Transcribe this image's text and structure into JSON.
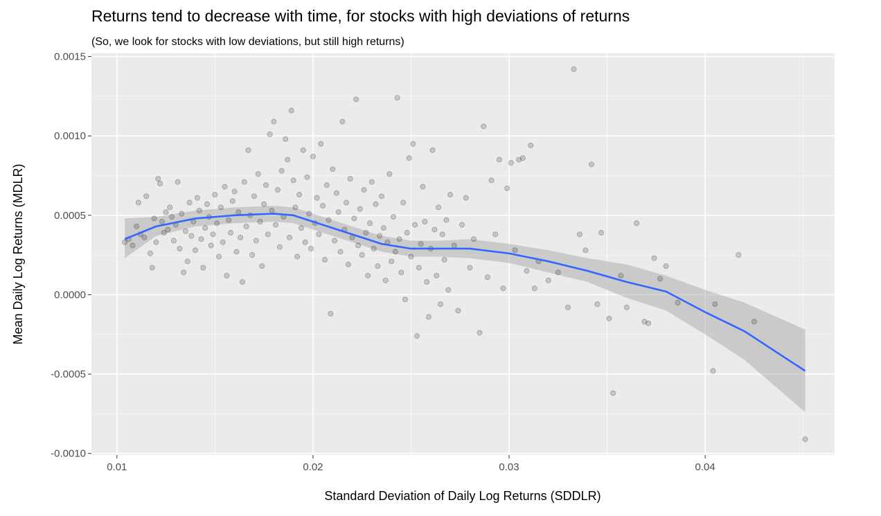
{
  "chart_data": {
    "type": "scatter",
    "title": "Returns tend to decrease with time, for stocks with high deviations of returns",
    "subtitle": "(So, we look for stocks with low deviations, but still high returns)",
    "xlabel": "Standard Deviation of Daily Log Returns (SDDLR)",
    "ylabel": "Mean Daily Log Returns (MDLR)",
    "xlim": [
      0.0087,
      0.0466
    ],
    "ylim": [
      -0.00101,
      0.00152
    ],
    "x_ticks": [
      0.01,
      0.02,
      0.03,
      0.04
    ],
    "x_tick_labels": [
      "0.01",
      "0.02",
      "0.03",
      "0.04"
    ],
    "y_ticks": [
      -0.001,
      -0.0005,
      0.0,
      0.0005,
      0.001,
      0.0015
    ],
    "y_tick_labels": [
      "-0.0010",
      "-0.0005",
      "0.0000",
      "0.0005",
      "0.0010",
      "0.0015"
    ],
    "grid": true,
    "colors": {
      "panel": "#ebebeb",
      "grid_major": "#ffffff",
      "points": "#000000",
      "smooth_line": "#3366ff",
      "ribbon": "#999999"
    },
    "points": [
      [
        0.0104,
        0.00033
      ],
      [
        0.0106,
        0.00035
      ],
      [
        0.0108,
        0.00031
      ],
      [
        0.011,
        0.00043
      ],
      [
        0.0111,
        0.00058
      ],
      [
        0.0112,
        0.00038
      ],
      [
        0.0114,
        0.00036
      ],
      [
        0.0115,
        0.00062
      ],
      [
        0.0117,
        0.00026
      ],
      [
        0.0118,
        0.00017
      ],
      [
        0.0119,
        0.00048
      ],
      [
        0.012,
        0.00033
      ],
      [
        0.0121,
        0.00073
      ],
      [
        0.0122,
        0.0007
      ],
      [
        0.0123,
        0.00046
      ],
      [
        0.0124,
        0.00039
      ],
      [
        0.0125,
        0.00052
      ],
      [
        0.0126,
        0.00041
      ],
      [
        0.0127,
        0.00055
      ],
      [
        0.0128,
        0.00049
      ],
      [
        0.0129,
        0.00034
      ],
      [
        0.013,
        0.00044
      ],
      [
        0.0131,
        0.00071
      ],
      [
        0.0132,
        0.00029
      ],
      [
        0.0133,
        0.00051
      ],
      [
        0.0134,
        0.00014
      ],
      [
        0.0135,
        0.0004
      ],
      [
        0.0136,
        0.00021
      ],
      [
        0.0137,
        0.00058
      ],
      [
        0.0138,
        0.00037
      ],
      [
        0.0139,
        0.00046
      ],
      [
        0.014,
        0.00028
      ],
      [
        0.0141,
        0.00061
      ],
      [
        0.0142,
        0.00053
      ],
      [
        0.0143,
        0.00035
      ],
      [
        0.0144,
        0.00017
      ],
      [
        0.0145,
        0.00042
      ],
      [
        0.0146,
        0.00057
      ],
      [
        0.0147,
        0.00049
      ],
      [
        0.0148,
        0.00031
      ],
      [
        0.0149,
        0.00038
      ],
      [
        0.015,
        0.00063
      ],
      [
        0.0151,
        0.00045
      ],
      [
        0.0152,
        0.00024
      ],
      [
        0.0153,
        0.00055
      ],
      [
        0.0154,
        0.00033
      ],
      [
        0.0155,
        0.00068
      ],
      [
        0.0156,
        0.00012
      ],
      [
        0.0157,
        0.00047
      ],
      [
        0.0158,
        0.00039
      ],
      [
        0.0159,
        0.00059
      ],
      [
        0.016,
        0.00065
      ],
      [
        0.0161,
        0.00027
      ],
      [
        0.0162,
        0.00052
      ],
      [
        0.0163,
        0.00036
      ],
      [
        0.0164,
        8e-05
      ],
      [
        0.0165,
        0.00071
      ],
      [
        0.0166,
        0.00043
      ],
      [
        0.0167,
        0.00091
      ],
      [
        0.0168,
        0.0005
      ],
      [
        0.0169,
        0.00025
      ],
      [
        0.017,
        0.00062
      ],
      [
        0.0171,
        0.00034
      ],
      [
        0.0172,
        0.00076
      ],
      [
        0.0173,
        0.00046
      ],
      [
        0.0174,
        0.00018
      ],
      [
        0.0175,
        0.00057
      ],
      [
        0.0176,
        0.00069
      ],
      [
        0.0177,
        0.00038
      ],
      [
        0.0178,
        0.00101
      ],
      [
        0.0179,
        0.00053
      ],
      [
        0.018,
        0.00109
      ],
      [
        0.0181,
        0.00044
      ],
      [
        0.0182,
        0.00066
      ],
      [
        0.0183,
        0.0003
      ],
      [
        0.0184,
        0.00078
      ],
      [
        0.0185,
        0.00049
      ],
      [
        0.0186,
        0.00098
      ],
      [
        0.0187,
        0.00085
      ],
      [
        0.0188,
        0.00036
      ],
      [
        0.0189,
        0.00116
      ],
      [
        0.019,
        0.00072
      ],
      [
        0.0191,
        0.00055
      ],
      [
        0.0192,
        0.00024
      ],
      [
        0.0193,
        0.00063
      ],
      [
        0.0194,
        0.00042
      ],
      [
        0.0195,
        0.00091
      ],
      [
        0.0196,
        0.00033
      ],
      [
        0.0197,
        0.00074
      ],
      [
        0.0198,
        0.00051
      ],
      [
        0.0199,
        0.00029
      ],
      [
        0.02,
        0.00087
      ],
      [
        0.0201,
        0.00045
      ],
      [
        0.0202,
        0.00061
      ],
      [
        0.0203,
        0.00038
      ],
      [
        0.0204,
        0.00095
      ],
      [
        0.0205,
        0.00056
      ],
      [
        0.0206,
        0.00022
      ],
      [
        0.0207,
        0.00069
      ],
      [
        0.0208,
        0.00047
      ],
      [
        0.0209,
        -0.00012
      ],
      [
        0.021,
        0.00079
      ],
      [
        0.0211,
        0.00034
      ],
      [
        0.0212,
        0.00064
      ],
      [
        0.0213,
        0.00052
      ],
      [
        0.0214,
        0.00027
      ],
      [
        0.0215,
        0.00109
      ],
      [
        0.0216,
        0.00041
      ],
      [
        0.0217,
        0.00058
      ],
      [
        0.0218,
        0.00019
      ],
      [
        0.0219,
        0.00073
      ],
      [
        0.022,
        0.00036
      ],
      [
        0.0221,
        0.00048
      ],
      [
        0.0222,
        0.00123
      ],
      [
        0.0223,
        0.00031
      ],
      [
        0.0224,
        0.00054
      ],
      [
        0.0225,
        0.00025
      ],
      [
        0.0226,
        0.00066
      ],
      [
        0.0227,
        0.00039
      ],
      [
        0.0228,
        0.00012
      ],
      [
        0.0229,
        0.00045
      ],
      [
        0.023,
        0.00071
      ],
      [
        0.0231,
        0.00029
      ],
      [
        0.0232,
        0.00057
      ],
      [
        0.0233,
        0.00018
      ],
      [
        0.0234,
        0.00037
      ],
      [
        0.0235,
        0.00062
      ],
      [
        0.0236,
        0.00042
      ],
      [
        0.0237,
        9e-05
      ],
      [
        0.0238,
        0.00033
      ],
      [
        0.0239,
        0.00076
      ],
      [
        0.024,
        0.00021
      ],
      [
        0.0241,
        0.00049
      ],
      [
        0.0242,
        0.00027
      ],
      [
        0.0243,
        0.00124
      ],
      [
        0.0244,
        0.00035
      ],
      [
        0.0245,
        0.00014
      ],
      [
        0.0246,
        0.00058
      ],
      [
        0.0247,
        -3e-05
      ],
      [
        0.0248,
        0.00039
      ],
      [
        0.0249,
        0.00086
      ],
      [
        0.025,
        0.00024
      ],
      [
        0.0251,
        0.00095
      ],
      [
        0.0252,
        0.00044
      ],
      [
        0.0253,
        -0.00026
      ],
      [
        0.0254,
        0.00017
      ],
      [
        0.0255,
        0.00032
      ],
      [
        0.0256,
        0.00068
      ],
      [
        0.0257,
        0.00046
      ],
      [
        0.0258,
        8e-05
      ],
      [
        0.0259,
        -0.00014
      ],
      [
        0.026,
        0.00029
      ],
      [
        0.0261,
        0.00091
      ],
      [
        0.0262,
        0.00041
      ],
      [
        0.0263,
        0.00012
      ],
      [
        0.0264,
        0.00055
      ],
      [
        0.0265,
        -6e-05
      ],
      [
        0.0266,
        0.00038
      ],
      [
        0.0267,
        0.00022
      ],
      [
        0.0268,
        0.00047
      ],
      [
        0.0269,
        3e-05
      ],
      [
        0.027,
        0.00063
      ],
      [
        0.0272,
        0.00031
      ],
      [
        0.0274,
        -0.0001
      ],
      [
        0.0276,
        0.00044
      ],
      [
        0.0278,
        0.00061
      ],
      [
        0.028,
        0.00017
      ],
      [
        0.0282,
        0.00035
      ],
      [
        0.0285,
        -0.00024
      ],
      [
        0.0287,
        0.00106
      ],
      [
        0.0289,
        0.00011
      ],
      [
        0.0291,
        0.00072
      ],
      [
        0.0293,
        0.00038
      ],
      [
        0.0295,
        0.00085
      ],
      [
        0.0297,
        4e-05
      ],
      [
        0.0299,
        0.00067
      ],
      [
        0.0301,
        0.00083
      ],
      [
        0.0303,
        0.00028
      ],
      [
        0.0305,
        0.00085
      ],
      [
        0.0307,
        0.00086
      ],
      [
        0.0309,
        0.00015
      ],
      [
        0.0311,
        0.00094
      ],
      [
        0.0313,
        4e-05
      ],
      [
        0.0315,
        0.00021
      ],
      [
        0.032,
        9e-05
      ],
      [
        0.0325,
        0.00014
      ],
      [
        0.033,
        -8e-05
      ],
      [
        0.0333,
        0.00142
      ],
      [
        0.0336,
        0.00038
      ],
      [
        0.0339,
        0.00028
      ],
      [
        0.0342,
        0.00082
      ],
      [
        0.0345,
        -6e-05
      ],
      [
        0.0347,
        0.00039
      ],
      [
        0.0351,
        -0.00015
      ],
      [
        0.0353,
        -0.00062
      ],
      [
        0.0357,
        0.00012
      ],
      [
        0.036,
        -8e-05
      ],
      [
        0.0365,
        0.00045
      ],
      [
        0.0369,
        -0.00017
      ],
      [
        0.0371,
        -0.00018
      ],
      [
        0.0374,
        0.00023
      ],
      [
        0.0377,
        0.0001
      ],
      [
        0.038,
        0.00018
      ],
      [
        0.0386,
        -5e-05
      ],
      [
        0.0404,
        -0.00048
      ],
      [
        0.0405,
        -6e-05
      ],
      [
        0.0417,
        0.00025
      ],
      [
        0.0425,
        -0.00017
      ],
      [
        0.0451,
        -0.00091
      ]
    ],
    "smooth_line": [
      [
        0.0104,
        0.00035
      ],
      [
        0.012,
        0.00043
      ],
      [
        0.014,
        0.00048
      ],
      [
        0.016,
        0.0005
      ],
      [
        0.018,
        0.00051
      ],
      [
        0.019,
        0.0005
      ],
      [
        0.0205,
        0.00044
      ],
      [
        0.022,
        0.00038
      ],
      [
        0.0235,
        0.00032
      ],
      [
        0.025,
        0.00029
      ],
      [
        0.0265,
        0.00029
      ],
      [
        0.028,
        0.00029
      ],
      [
        0.03,
        0.00026
      ],
      [
        0.032,
        0.00021
      ],
      [
        0.034,
        0.00015
      ],
      [
        0.036,
        8e-05
      ],
      [
        0.038,
        2e-05
      ],
      [
        0.04,
        -0.00011
      ],
      [
        0.042,
        -0.00023
      ],
      [
        0.0451,
        -0.00048
      ]
    ],
    "ribbon_upper": [
      [
        0.0104,
        0.00048
      ],
      [
        0.012,
        0.00049
      ],
      [
        0.014,
        0.00053
      ],
      [
        0.016,
        0.00055
      ],
      [
        0.018,
        0.00056
      ],
      [
        0.019,
        0.00055
      ],
      [
        0.0205,
        0.00049
      ],
      [
        0.022,
        0.00043
      ],
      [
        0.0235,
        0.00037
      ],
      [
        0.025,
        0.00034
      ],
      [
        0.0265,
        0.00034
      ],
      [
        0.028,
        0.00035
      ],
      [
        0.03,
        0.00032
      ],
      [
        0.032,
        0.00028
      ],
      [
        0.034,
        0.00023
      ],
      [
        0.036,
        0.00019
      ],
      [
        0.038,
        0.00012
      ],
      [
        0.04,
        3e-05
      ],
      [
        0.042,
        -5e-05
      ],
      [
        0.0451,
        -0.00022
      ]
    ],
    "ribbon_lower": [
      [
        0.0104,
        0.00023
      ],
      [
        0.012,
        0.00037
      ],
      [
        0.014,
        0.00043
      ],
      [
        0.016,
        0.00045
      ],
      [
        0.018,
        0.00046
      ],
      [
        0.019,
        0.00045
      ],
      [
        0.0205,
        0.00039
      ],
      [
        0.022,
        0.00033
      ],
      [
        0.0235,
        0.00027
      ],
      [
        0.025,
        0.00024
      ],
      [
        0.0265,
        0.00024
      ],
      [
        0.028,
        0.00023
      ],
      [
        0.03,
        0.0002
      ],
      [
        0.032,
        0.00014
      ],
      [
        0.034,
        8e-05
      ],
      [
        0.036,
        -2e-05
      ],
      [
        0.038,
        -0.0001
      ],
      [
        0.04,
        -0.00025
      ],
      [
        0.042,
        -0.00041
      ],
      [
        0.0451,
        -0.00074
      ]
    ]
  }
}
